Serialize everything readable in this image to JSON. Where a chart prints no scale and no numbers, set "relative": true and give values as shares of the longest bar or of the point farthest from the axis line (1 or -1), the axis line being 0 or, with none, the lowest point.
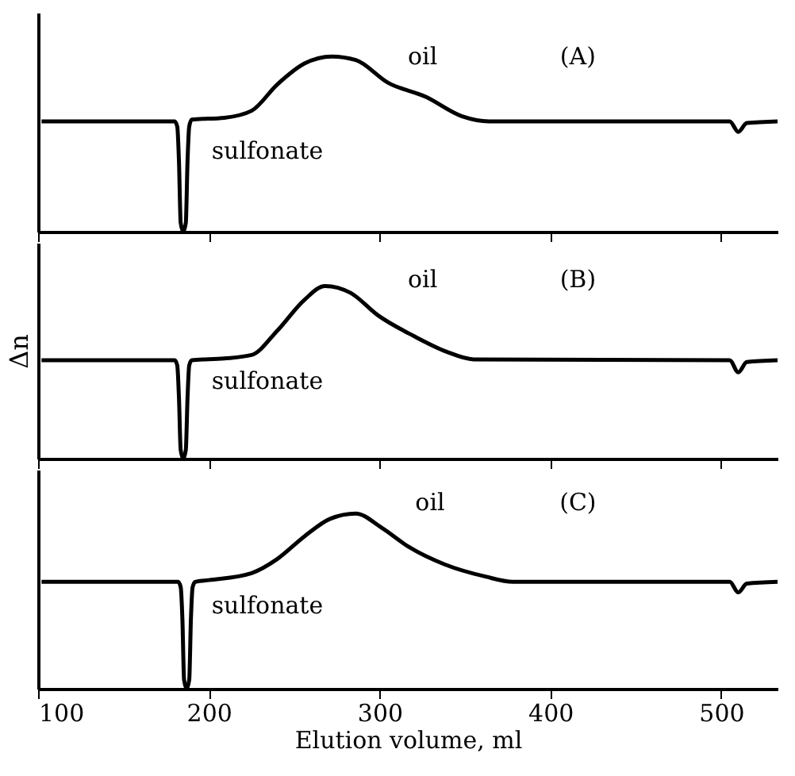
{
  "chart_data": [
    {
      "type": "line",
      "relative": true,
      "xlim": [
        100,
        533
      ],
      "xticks": [
        100,
        200,
        300,
        400,
        500
      ],
      "tick_labels": false,
      "line_style": "solid",
      "marker": "none",
      "series": [
        {
          "color": "#000000",
          "x": [
            102,
            180,
            181.5,
            182.5,
            183.5,
            185,
            186.5,
            187.5,
            188.5,
            190,
            209,
            225,
            240,
            256,
            272,
            286,
            305,
            327,
            348,
            364,
            505,
            510,
            515,
            533
          ],
          "values": [
            0.63,
            0.63,
            0.6,
            0.4,
            0.05,
            0,
            0.05,
            0.4,
            0.6,
            0.64,
            0.65,
            0.69,
            0.84,
            0.96,
            1.0,
            0.98,
            0.85,
            0.77,
            0.66,
            0.63,
            0.63,
            0.57,
            0.62,
            0.63
          ]
        }
      ],
      "annotations": [
        "oil",
        "(A)",
        "sulfonate"
      ]
    },
    {
      "type": "line",
      "relative": true,
      "xlim": [
        100,
        533
      ],
      "xticks": [
        100,
        200,
        300,
        400,
        500
      ],
      "tick_labels": false,
      "ylabel": "Δn",
      "line_style": "solid",
      "marker": "none",
      "series": [
        {
          "color": "#000000",
          "x": [
            102,
            180,
            181.5,
            182.5,
            183.5,
            185,
            186.5,
            187.5,
            188.5,
            190,
            209,
            225,
            240,
            256,
            268,
            283,
            299,
            320,
            339,
            355,
            505,
            510,
            515,
            533
          ],
          "values": [
            0.57,
            0.57,
            0.54,
            0.35,
            0.05,
            0,
            0.05,
            0.35,
            0.54,
            0.57,
            0.58,
            0.6,
            0.74,
            0.92,
            1.0,
            0.96,
            0.83,
            0.71,
            0.62,
            0.575,
            0.57,
            0.5,
            0.56,
            0.57
          ]
        }
      ],
      "annotations": [
        "oil",
        "(B)",
        "sulfonate"
      ]
    },
    {
      "type": "line",
      "relative": true,
      "xlim": [
        100,
        533
      ],
      "xticks": [
        100,
        200,
        300,
        400,
        500
      ],
      "tick_labels": "x",
      "xlabel": "Elution volume,  ml",
      "line_style": "solid",
      "marker": "none",
      "series": [
        {
          "color": "#000000",
          "x": [
            102,
            182,
            183.5,
            184.5,
            185.5,
            187,
            188.5,
            189.5,
            190.5,
            192,
            200,
            225,
            240,
            256,
            271,
            286,
            301,
            317,
            338,
            362,
            378,
            505,
            510,
            515,
            533
          ],
          "values": [
            0.61,
            0.61,
            0.58,
            0.4,
            0.05,
            0,
            0.05,
            0.4,
            0.58,
            0.61,
            0.62,
            0.66,
            0.74,
            0.87,
            0.97,
            1.0,
            0.92,
            0.81,
            0.71,
            0.64,
            0.61,
            0.61,
            0.55,
            0.6,
            0.61
          ]
        }
      ],
      "annotations": [
        "oil",
        "(C)",
        "sulfonate"
      ]
    }
  ]
}
